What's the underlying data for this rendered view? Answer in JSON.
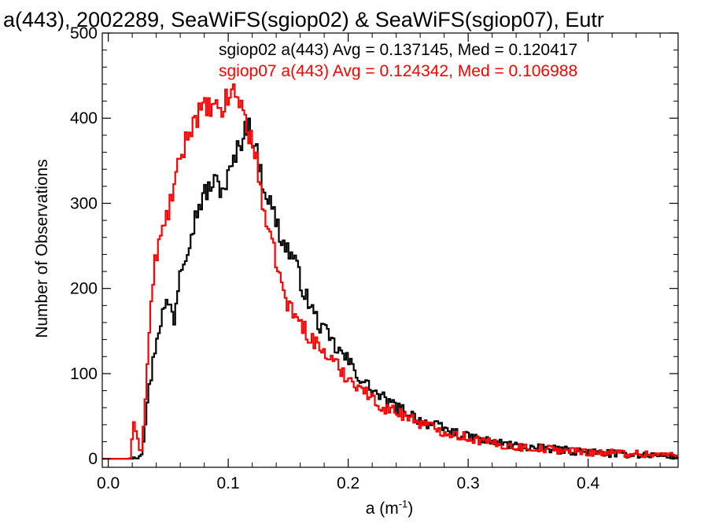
{
  "chart_data": {
    "type": "histogram",
    "title": "a(443), 2002289, SeaWiFS(sgiop02) & SeaWiFS(sgiop07), Eutr",
    "xlabel": "a (m",
    "xlabel_sup": "-1",
    "xlabel_close": ")",
    "ylabel": "Number of Observations",
    "xlim": [
      -0.005,
      0.475
    ],
    "ylim": [
      -10,
      500
    ],
    "xticks": [
      0.0,
      0.1,
      0.2,
      0.3,
      0.4
    ],
    "xtick_labels": [
      "0.0",
      "0.1",
      "0.2",
      "0.3",
      "0.4"
    ],
    "yticks": [
      0,
      100,
      200,
      300,
      400,
      500
    ],
    "ytick_labels": [
      "0",
      "100",
      "200",
      "300",
      "400",
      "500"
    ],
    "x_minor_step": 0.02,
    "y_minor_step": 20,
    "legend_position": "top-right",
    "series": [
      {
        "name": "sgiop02 a(443) Avg = 0.137145, Med = 0.120417",
        "color": "#000000",
        "points": [
          [
            -0.005,
            0
          ],
          [
            0.02,
            0
          ],
          [
            0.022,
            5
          ],
          [
            0.025,
            2
          ],
          [
            0.028,
            10
          ],
          [
            0.03,
            30
          ],
          [
            0.032,
            60
          ],
          [
            0.034,
            80
          ],
          [
            0.036,
            100
          ],
          [
            0.038,
            120
          ],
          [
            0.04,
            140
          ],
          [
            0.045,
            170
          ],
          [
            0.05,
            185
          ],
          [
            0.055,
            165
          ],
          [
            0.06,
            225
          ],
          [
            0.065,
            245
          ],
          [
            0.07,
            270
          ],
          [
            0.075,
            295
          ],
          [
            0.08,
            310
          ],
          [
            0.085,
            320
          ],
          [
            0.09,
            325
          ],
          [
            0.095,
            315
          ],
          [
            0.1,
            330
          ],
          [
            0.105,
            350
          ],
          [
            0.11,
            370
          ],
          [
            0.115,
            395
          ],
          [
            0.12,
            380
          ],
          [
            0.125,
            350
          ],
          [
            0.13,
            320
          ],
          [
            0.135,
            300
          ],
          [
            0.14,
            280
          ],
          [
            0.145,
            255
          ],
          [
            0.15,
            245
          ],
          [
            0.155,
            235
          ],
          [
            0.16,
            210
          ],
          [
            0.165,
            190
          ],
          [
            0.17,
            175
          ],
          [
            0.175,
            160
          ],
          [
            0.18,
            150
          ],
          [
            0.185,
            140
          ],
          [
            0.19,
            130
          ],
          [
            0.2,
            115
          ],
          [
            0.21,
            95
          ],
          [
            0.22,
            80
          ],
          [
            0.23,
            70
          ],
          [
            0.24,
            60
          ],
          [
            0.25,
            55
          ],
          [
            0.26,
            45
          ],
          [
            0.28,
            35
          ],
          [
            0.3,
            25
          ],
          [
            0.32,
            20
          ],
          [
            0.34,
            15
          ],
          [
            0.36,
            12
          ],
          [
            0.38,
            10
          ],
          [
            0.4,
            8
          ],
          [
            0.42,
            6
          ],
          [
            0.44,
            5
          ],
          [
            0.46,
            4
          ],
          [
            0.475,
            3
          ]
        ]
      },
      {
        "name": "sgiop07 a(443) Avg = 0.124342, Med = 0.106988",
        "color": "#ff0000",
        "points": [
          [
            -0.005,
            0
          ],
          [
            0.018,
            0
          ],
          [
            0.02,
            20
          ],
          [
            0.022,
            45
          ],
          [
            0.024,
            30
          ],
          [
            0.026,
            15
          ],
          [
            0.028,
            8
          ],
          [
            0.03,
            50
          ],
          [
            0.032,
            90
          ],
          [
            0.034,
            150
          ],
          [
            0.036,
            180
          ],
          [
            0.038,
            220
          ],
          [
            0.04,
            240
          ],
          [
            0.045,
            265
          ],
          [
            0.05,
            290
          ],
          [
            0.055,
            320
          ],
          [
            0.06,
            350
          ],
          [
            0.065,
            375
          ],
          [
            0.07,
            395
          ],
          [
            0.075,
            405
          ],
          [
            0.08,
            410
          ],
          [
            0.085,
            412
          ],
          [
            0.09,
            408
          ],
          [
            0.095,
            410
          ],
          [
            0.1,
            425
          ],
          [
            0.105,
            432
          ],
          [
            0.11,
            420
          ],
          [
            0.115,
            395
          ],
          [
            0.12,
            370
          ],
          [
            0.125,
            340
          ],
          [
            0.13,
            290
          ],
          [
            0.135,
            255
          ],
          [
            0.14,
            235
          ],
          [
            0.145,
            200
          ],
          [
            0.15,
            180
          ],
          [
            0.16,
            160
          ],
          [
            0.17,
            140
          ],
          [
            0.18,
            125
          ],
          [
            0.19,
            110
          ],
          [
            0.2,
            95
          ],
          [
            0.21,
            85
          ],
          [
            0.22,
            70
          ],
          [
            0.23,
            60
          ],
          [
            0.24,
            55
          ],
          [
            0.25,
            50
          ],
          [
            0.26,
            42
          ],
          [
            0.28,
            32
          ],
          [
            0.3,
            25
          ],
          [
            0.32,
            18
          ],
          [
            0.34,
            14
          ],
          [
            0.36,
            12
          ],
          [
            0.38,
            10
          ],
          [
            0.4,
            8
          ],
          [
            0.42,
            7
          ],
          [
            0.44,
            6
          ],
          [
            0.46,
            5
          ],
          [
            0.475,
            4
          ]
        ]
      }
    ]
  }
}
